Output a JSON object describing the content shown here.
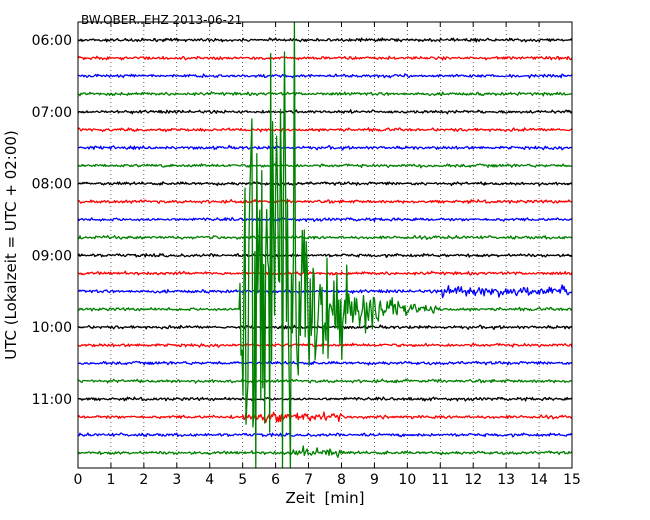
{
  "chart_data": {
    "type": "line",
    "title": "BW.OBER..EHZ 2013-06-21",
    "xlabel": "Zeit  [min]",
    "ylabel": "UTC (Lokalzeit = UTC + 02:00)",
    "x_ticks": [
      "0",
      "1",
      "2",
      "3",
      "4",
      "5",
      "6",
      "7",
      "8",
      "9",
      "10",
      "11",
      "12",
      "13",
      "14",
      "15"
    ],
    "xlim": [
      0,
      15
    ],
    "y_ticks": [
      "06:00",
      "07:00",
      "08:00",
      "09:00",
      "10:00",
      "11:00"
    ],
    "y_tick_rows": [
      0,
      4,
      8,
      12,
      16,
      20
    ],
    "trace_count": 24,
    "trace_interval_min": 15,
    "trace_colors": [
      "#000000",
      "#ff0000",
      "#0000ff",
      "#008000"
    ],
    "grid": true,
    "event": {
      "description_time": "09:45",
      "trace_row": 15,
      "trace_color": "#0000ff",
      "saturated_from_min": 4.9,
      "saturated_to_min": 6.6,
      "decay_until_min": 11
    },
    "secondary_bursts": [
      {
        "trace_row": 14,
        "start_min": 11.0,
        "end_min": 15.0
      },
      {
        "trace_row": 21,
        "start_min": 5.0,
        "end_min": 8.0
      },
      {
        "trace_row": 23,
        "start_min": 6.5,
        "end_min": 8.0
      }
    ]
  }
}
